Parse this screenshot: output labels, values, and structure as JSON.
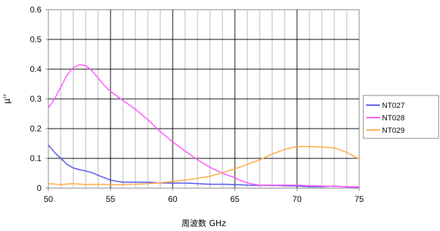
{
  "chart_data": {
    "type": "line",
    "xlabel": "周波数 GHz",
    "ylabel": "μ''",
    "xlim": [
      50,
      75
    ],
    "ylim": [
      0,
      0.6
    ],
    "x_ticks": [
      50,
      55,
      60,
      65,
      70,
      75
    ],
    "y_ticks": [
      0,
      0.1,
      0.2,
      0.3,
      0.4,
      0.5,
      0.6
    ],
    "y_tick_labels": [
      "0",
      "0.1",
      "0.2",
      "0.3",
      "0.4",
      "0.5",
      "0.6"
    ],
    "grid": true,
    "minor_x_grid_step": 1,
    "legend_position": "right",
    "background": "#ffffff",
    "series": [
      {
        "name": "NT027",
        "color": "#5555ee",
        "x": [
          50,
          50.5,
          51,
          51.5,
          52,
          52.5,
          53,
          53.5,
          54,
          54.5,
          55,
          55.5,
          56,
          57,
          58,
          59,
          60,
          61,
          62,
          63,
          64,
          65,
          66,
          67,
          68,
          69,
          70,
          71,
          72,
          73,
          74,
          75
        ],
        "values": [
          0.145,
          0.12,
          0.1,
          0.08,
          0.068,
          0.062,
          0.058,
          0.052,
          0.043,
          0.035,
          0.027,
          0.023,
          0.02,
          0.02,
          0.02,
          0.017,
          0.017,
          0.017,
          0.015,
          0.013,
          0.013,
          0.012,
          0.01,
          0.009,
          0.009,
          0.008,
          0.007,
          0.005,
          0.005,
          0.007,
          0.004,
          0.002
        ]
      },
      {
        "name": "NT028",
        "color": "#ff55ff",
        "x": [
          50,
          50.5,
          51,
          51.5,
          52,
          52.5,
          53,
          53.5,
          54,
          54.5,
          55,
          55.5,
          56,
          57,
          58,
          59,
          60,
          61,
          62,
          63,
          64,
          65,
          65.5,
          66,
          66.5,
          67,
          68,
          69,
          70,
          71,
          72,
          73,
          74,
          75
        ],
        "values": [
          0.27,
          0.3,
          0.34,
          0.38,
          0.405,
          0.415,
          0.412,
          0.395,
          0.37,
          0.345,
          0.325,
          0.31,
          0.295,
          0.265,
          0.23,
          0.19,
          0.155,
          0.125,
          0.095,
          0.07,
          0.05,
          0.035,
          0.025,
          0.018,
          0.013,
          0.01,
          0.01,
          0.01,
          0.01,
          0.008,
          0.007,
          0.006,
          0.005,
          0.004
        ]
      },
      {
        "name": "NT029",
        "color": "#ffaa44",
        "x": [
          50,
          51,
          52,
          53,
          54,
          55,
          56,
          57,
          58,
          59,
          60,
          61,
          62,
          63,
          64,
          65,
          66,
          67,
          68,
          69,
          70,
          71,
          72,
          73,
          74,
          75
        ],
        "values": [
          0.015,
          0.012,
          0.015,
          0.012,
          0.013,
          0.012,
          0.012,
          0.013,
          0.015,
          0.018,
          0.022,
          0.027,
          0.033,
          0.04,
          0.052,
          0.065,
          0.08,
          0.095,
          0.115,
          0.13,
          0.14,
          0.14,
          0.138,
          0.135,
          0.12,
          0.098
        ]
      }
    ]
  }
}
